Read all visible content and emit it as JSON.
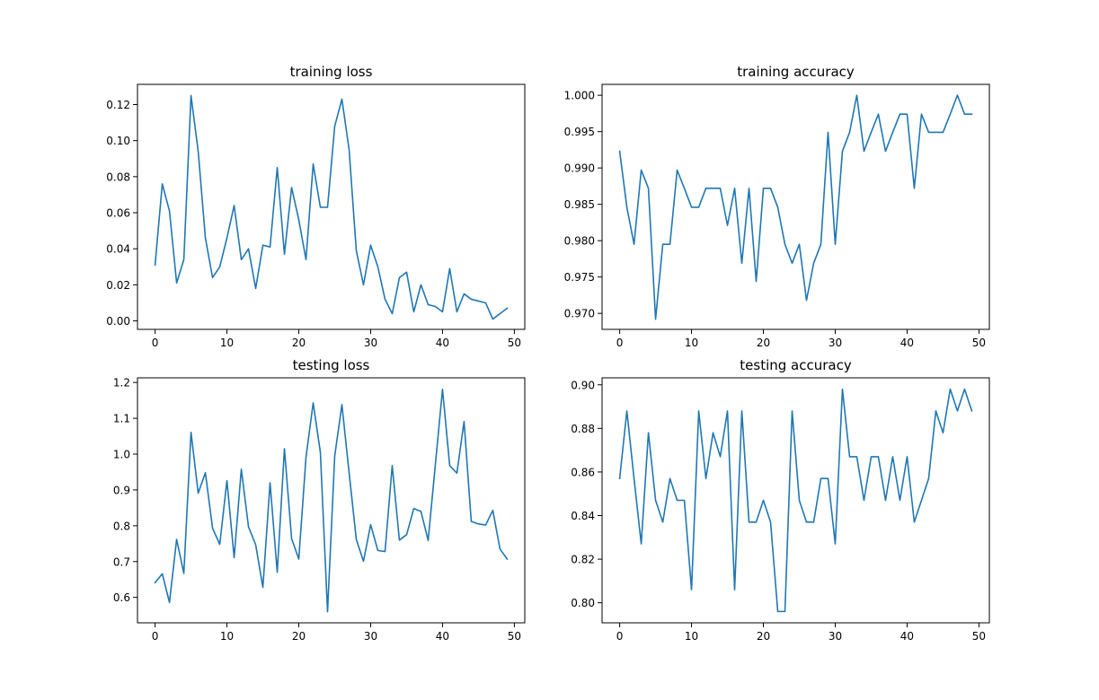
{
  "figure": {
    "background": "#ffffff",
    "line_color": "#1f77b4"
  },
  "chart_data": [
    {
      "type": "line",
      "title": "training loss",
      "xlabel": "",
      "ylabel": "",
      "xlim": [
        -2.45,
        51.45
      ],
      "ylim": [
        -0.0047,
        0.1312
      ],
      "xticks": [
        0,
        10,
        20,
        30,
        40,
        50
      ],
      "xtick_labels": [
        "0",
        "10",
        "20",
        "30",
        "40",
        "50"
      ],
      "yticks": [
        0.0,
        0.02,
        0.04,
        0.06,
        0.08,
        0.1,
        0.12
      ],
      "ytick_labels": [
        "0.00",
        "0.02",
        "0.04",
        "0.06",
        "0.08",
        "0.10",
        "0.12"
      ],
      "grid": false,
      "series": [
        {
          "x": [
            0,
            1,
            2,
            3,
            4,
            5,
            6,
            7,
            8,
            9,
            10,
            11,
            12,
            13,
            14,
            15,
            16,
            17,
            18,
            19,
            20,
            21,
            22,
            23,
            24,
            25,
            26,
            27,
            28,
            29,
            30,
            31,
            32,
            33,
            34,
            35,
            36,
            37,
            38,
            39,
            40,
            41,
            42,
            43,
            44,
            45,
            46,
            47,
            48,
            49
          ],
          "y": [
            0.031,
            0.076,
            0.061,
            0.021,
            0.034,
            0.125,
            0.094,
            0.046,
            0.024,
            0.03,
            0.046,
            0.064,
            0.034,
            0.04,
            0.018,
            0.042,
            0.041,
            0.085,
            0.037,
            0.074,
            0.056,
            0.034,
            0.087,
            0.063,
            0.063,
            0.108,
            0.123,
            0.095,
            0.039,
            0.02,
            0.042,
            0.03,
            0.012,
            0.004,
            0.024,
            0.027,
            0.005,
            0.02,
            0.009,
            0.008,
            0.005,
            0.029,
            0.005,
            0.015,
            0.012,
            0.011,
            0.01,
            0.001,
            0.004,
            0.007
          ]
        }
      ]
    },
    {
      "type": "line",
      "title": "training accuracy",
      "xlabel": "",
      "ylabel": "",
      "xlim": [
        -2.45,
        51.45
      ],
      "ylim": [
        0.9678,
        1.0015
      ],
      "xticks": [
        0,
        10,
        20,
        30,
        40,
        50
      ],
      "xtick_labels": [
        "0",
        "10",
        "20",
        "30",
        "40",
        "50"
      ],
      "yticks": [
        0.97,
        0.975,
        0.98,
        0.985,
        0.99,
        0.995,
        1.0
      ],
      "ytick_labels": [
        "0.970",
        "0.975",
        "0.980",
        "0.985",
        "0.990",
        "0.995",
        "1.000"
      ],
      "grid": false,
      "series": [
        {
          "x": [
            0,
            1,
            2,
            3,
            4,
            5,
            6,
            7,
            8,
            9,
            10,
            11,
            12,
            13,
            14,
            15,
            16,
            17,
            18,
            19,
            20,
            21,
            22,
            23,
            24,
            25,
            26,
            27,
            28,
            29,
            30,
            31,
            32,
            33,
            34,
            35,
            36,
            37,
            38,
            39,
            40,
            41,
            42,
            43,
            44,
            45,
            46,
            47,
            48,
            49
          ],
          "y": [
            0.9923,
            0.9846,
            0.9795,
            0.9897,
            0.9872,
            0.9692,
            0.9795,
            0.9795,
            0.9897,
            0.9872,
            0.9846,
            0.9846,
            0.9872,
            0.9872,
            0.9872,
            0.9821,
            0.9872,
            0.9769,
            0.9872,
            0.9744,
            0.9872,
            0.9872,
            0.9846,
            0.9795,
            0.9769,
            0.9795,
            0.9718,
            0.9769,
            0.9795,
            0.9949,
            0.9795,
            0.9923,
            0.9949,
            1.0,
            0.9923,
            0.9949,
            0.9974,
            0.9923,
            0.9949,
            0.9974,
            0.9974,
            0.9872,
            0.9974,
            0.9949,
            0.9949,
            0.9949,
            0.9974,
            1.0,
            0.9974,
            0.9974
          ]
        }
      ]
    },
    {
      "type": "line",
      "title": "testing loss",
      "xlabel": "",
      "ylabel": "",
      "xlim": [
        -2.45,
        51.45
      ],
      "ylim": [
        0.529,
        1.213
      ],
      "xticks": [
        0,
        10,
        20,
        30,
        40,
        50
      ],
      "xtick_labels": [
        "0",
        "10",
        "20",
        "30",
        "40",
        "50"
      ],
      "yticks": [
        0.6,
        0.7,
        0.8,
        0.9,
        1.0,
        1.1,
        1.2
      ],
      "ytick_labels": [
        "0.6",
        "0.7",
        "0.8",
        "0.9",
        "1.0",
        "1.1",
        "1.2"
      ],
      "grid": false,
      "series": [
        {
          "x": [
            0,
            1,
            2,
            3,
            4,
            5,
            6,
            7,
            8,
            9,
            10,
            11,
            12,
            13,
            14,
            15,
            16,
            17,
            18,
            19,
            20,
            21,
            22,
            23,
            24,
            25,
            26,
            27,
            28,
            29,
            30,
            31,
            32,
            33,
            34,
            35,
            36,
            37,
            38,
            39,
            40,
            41,
            42,
            43,
            44,
            45,
            46,
            47,
            48,
            49
          ],
          "y": [
            0.641,
            0.666,
            0.586,
            0.762,
            0.667,
            1.061,
            0.891,
            0.948,
            0.793,
            0.748,
            0.926,
            0.711,
            0.958,
            0.797,
            0.747,
            0.628,
            0.92,
            0.67,
            1.015,
            0.764,
            0.707,
            0.991,
            1.143,
            1.005,
            0.56,
            0.995,
            1.138,
            0.948,
            0.762,
            0.701,
            0.803,
            0.731,
            0.728,
            0.968,
            0.76,
            0.775,
            0.848,
            0.84,
            0.759,
            0.97,
            1.181,
            0.968,
            0.947,
            1.091,
            0.812,
            0.805,
            0.802,
            0.843,
            0.735,
            0.707
          ]
        }
      ]
    },
    {
      "type": "line",
      "title": "testing accuracy",
      "xlabel": "",
      "ylabel": "",
      "xlim": [
        -2.45,
        51.45
      ],
      "ylim": [
        0.7908,
        0.9032
      ],
      "xticks": [
        0,
        10,
        20,
        30,
        40,
        50
      ],
      "xtick_labels": [
        "0",
        "10",
        "20",
        "30",
        "40",
        "50"
      ],
      "yticks": [
        0.8,
        0.82,
        0.84,
        0.86,
        0.88,
        0.9
      ],
      "ytick_labels": [
        "0.80",
        "0.82",
        "0.84",
        "0.86",
        "0.88",
        "0.90"
      ],
      "grid": false,
      "series": [
        {
          "x": [
            0,
            1,
            2,
            3,
            4,
            5,
            6,
            7,
            8,
            9,
            10,
            11,
            12,
            13,
            14,
            15,
            16,
            17,
            18,
            19,
            20,
            21,
            22,
            23,
            24,
            25,
            26,
            27,
            28,
            29,
            30,
            31,
            32,
            33,
            34,
            35,
            36,
            37,
            38,
            39,
            40,
            41,
            42,
            43,
            44,
            45,
            46,
            47,
            48,
            49
          ],
          "y": [
            0.857,
            0.888,
            0.857,
            0.827,
            0.878,
            0.847,
            0.837,
            0.857,
            0.847,
            0.847,
            0.806,
            0.888,
            0.857,
            0.878,
            0.867,
            0.888,
            0.806,
            0.888,
            0.837,
            0.837,
            0.847,
            0.837,
            0.796,
            0.796,
            0.888,
            0.847,
            0.837,
            0.837,
            0.857,
            0.857,
            0.827,
            0.898,
            0.867,
            0.867,
            0.847,
            0.867,
            0.867,
            0.847,
            0.867,
            0.847,
            0.867,
            0.837,
            0.847,
            0.857,
            0.888,
            0.878,
            0.898,
            0.888,
            0.898,
            0.888
          ]
        }
      ]
    }
  ]
}
